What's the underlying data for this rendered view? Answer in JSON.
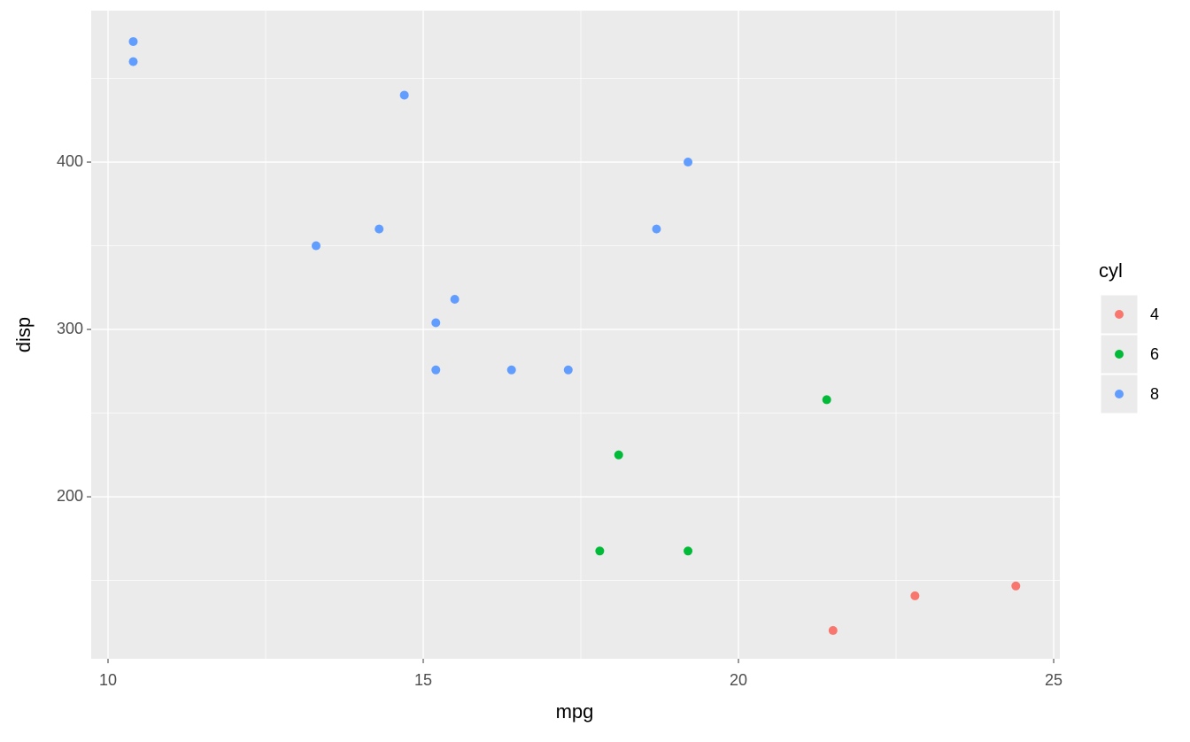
{
  "chart_data": {
    "type": "scatter",
    "xlabel": "mpg",
    "ylabel": "disp",
    "legend_title": "cyl",
    "xlim": [
      9.733,
      25.098
    ],
    "ylim": [
      103.2,
      490.5
    ],
    "xticks": [
      10,
      15,
      20,
      25
    ],
    "yticks": [
      200,
      300,
      400
    ],
    "grid": true,
    "series": [
      {
        "name": "4",
        "color": "#F8766D",
        "x": [
          21.5,
          22.8,
          24.4
        ],
        "values": [
          120.1,
          140.8,
          146.7
        ]
      },
      {
        "name": "6",
        "color": "#00BA38",
        "x": [
          18.1,
          17.8,
          19.2,
          21.4
        ],
        "values": [
          225,
          167.6,
          167.6,
          258
        ]
      },
      {
        "name": "8",
        "color": "#619CFF",
        "x": [
          10.4,
          10.4,
          14.7,
          13.3,
          14.3,
          15.2,
          15.5,
          15.2,
          16.4,
          17.3,
          18.7,
          19.2
        ],
        "values": [
          472,
          460,
          440,
          350,
          360,
          304,
          318,
          275.8,
          275.8,
          275.8,
          360,
          400
        ]
      }
    ]
  }
}
